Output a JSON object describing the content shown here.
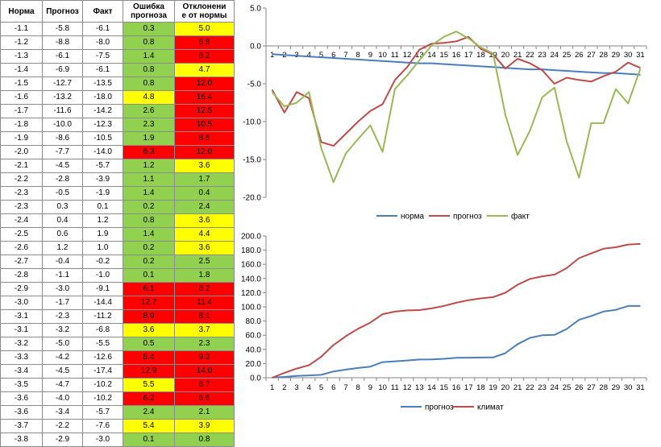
{
  "table": {
    "headers": [
      "Норма",
      "Прогноз",
      "Факт",
      "Ошибка прогноза",
      "Отклонение от нормы"
    ],
    "header_lines": [
      [
        "Норма"
      ],
      [
        "Прогноз"
      ],
      [
        "Факт"
      ],
      [
        "Ошибка",
        "прогноза"
      ],
      [
        "Отклонени",
        "е от нормы"
      ]
    ],
    "colors": {
      "green": "#92d050",
      "yellow": "#ffff00",
      "red": "#ff0000"
    },
    "rows": [
      {
        "norm": "-1.1",
        "forecast": "-5.8",
        "fact": "-6.1",
        "error": "0.3",
        "e_color": "green",
        "dev": "5.0",
        "d_color": "yellow"
      },
      {
        "norm": "-1.2",
        "forecast": "-8.8",
        "fact": "-8.0",
        "error": "0.8",
        "e_color": "green",
        "dev": "6.8",
        "d_color": "red"
      },
      {
        "norm": "-1.3",
        "forecast": "-6.1",
        "fact": "-7.5",
        "error": "1.4",
        "e_color": "green",
        "dev": "6.2",
        "d_color": "red"
      },
      {
        "norm": "-1.4",
        "forecast": "-6.9",
        "fact": "-6.1",
        "error": "0.8",
        "e_color": "green",
        "dev": "4.7",
        "d_color": "yellow"
      },
      {
        "norm": "-1.5",
        "forecast": "-12.7",
        "fact": "-13.5",
        "error": "0.8",
        "e_color": "green",
        "dev": "12.0",
        "d_color": "red"
      },
      {
        "norm": "-1.6",
        "forecast": "-13.2",
        "fact": "-18.0",
        "error": "4.8",
        "e_color": "yellow",
        "dev": "16.4",
        "d_color": "red"
      },
      {
        "norm": "-1.7",
        "forecast": "-11.6",
        "fact": "-14.2",
        "error": "2.6",
        "e_color": "green",
        "dev": "12.5",
        "d_color": "red"
      },
      {
        "norm": "-1.8",
        "forecast": "-10.0",
        "fact": "-12.3",
        "error": "2.3",
        "e_color": "green",
        "dev": "10.5",
        "d_color": "red"
      },
      {
        "norm": "-1.9",
        "forecast": "-8.6",
        "fact": "-10.5",
        "error": "1.9",
        "e_color": "green",
        "dev": "8.6",
        "d_color": "red"
      },
      {
        "norm": "-2.0",
        "forecast": "-7.7",
        "fact": "-14.0",
        "error": "6.3",
        "e_color": "red",
        "dev": "12.0",
        "d_color": "red"
      },
      {
        "norm": "-2.1",
        "forecast": "-4.5",
        "fact": "-5.7",
        "error": "1.2",
        "e_color": "green",
        "dev": "3.6",
        "d_color": "yellow"
      },
      {
        "norm": "-2.2",
        "forecast": "-2.8",
        "fact": "-3.9",
        "error": "1.1",
        "e_color": "green",
        "dev": "1.7",
        "d_color": "green"
      },
      {
        "norm": "-2.3",
        "forecast": "-0.5",
        "fact": "-1.9",
        "error": "1.4",
        "e_color": "green",
        "dev": "0.4",
        "d_color": "green"
      },
      {
        "norm": "-2.3",
        "forecast": "0.3",
        "fact": "0.1",
        "error": "0.2",
        "e_color": "green",
        "dev": "2.4",
        "d_color": "green"
      },
      {
        "norm": "-2.4",
        "forecast": "0.4",
        "fact": "1.2",
        "error": "0.8",
        "e_color": "green",
        "dev": "3.6",
        "d_color": "yellow"
      },
      {
        "norm": "-2.5",
        "forecast": "0.6",
        "fact": "1.9",
        "error": "1.4",
        "e_color": "green",
        "dev": "4.4",
        "d_color": "yellow"
      },
      {
        "norm": "-2.6",
        "forecast": "1.2",
        "fact": "1.0",
        "error": "0.2",
        "e_color": "green",
        "dev": "3.6",
        "d_color": "yellow"
      },
      {
        "norm": "-2.7",
        "forecast": "-0.4",
        "fact": "-0.2",
        "error": "0.2",
        "e_color": "green",
        "dev": "2.5",
        "d_color": "green"
      },
      {
        "norm": "-2.8",
        "forecast": "-1.1",
        "fact": "-1.0",
        "error": "0.1",
        "e_color": "green",
        "dev": "1.8",
        "d_color": "green"
      },
      {
        "norm": "-2.9",
        "forecast": "-3.0",
        "fact": "-9.1",
        "error": "6.1",
        "e_color": "red",
        "dev": "6.2",
        "d_color": "red"
      },
      {
        "norm": "-3.0",
        "forecast": "-1.7",
        "fact": "-14.4",
        "error": "12.7",
        "e_color": "red",
        "dev": "11.4",
        "d_color": "red"
      },
      {
        "norm": "-3.1",
        "forecast": "-2.3",
        "fact": "-11.2",
        "error": "8.9",
        "e_color": "red",
        "dev": "8.1",
        "d_color": "red"
      },
      {
        "norm": "-3.1",
        "forecast": "-3.2",
        "fact": "-6.8",
        "error": "3.6",
        "e_color": "yellow",
        "dev": "3.7",
        "d_color": "yellow"
      },
      {
        "norm": "-3.2",
        "forecast": "-5.0",
        "fact": "-5.5",
        "error": "0.5",
        "e_color": "green",
        "dev": "2.3",
        "d_color": "green"
      },
      {
        "norm": "-3.3",
        "forecast": "-4.2",
        "fact": "-12.6",
        "error": "8.4",
        "e_color": "red",
        "dev": "9.3",
        "d_color": "red"
      },
      {
        "norm": "-3.4",
        "forecast": "-4.5",
        "fact": "-17.4",
        "error": "12.9",
        "e_color": "red",
        "dev": "14.0",
        "d_color": "red"
      },
      {
        "norm": "-3.5",
        "forecast": "-4.7",
        "fact": "-10.2",
        "error": "5.5",
        "e_color": "yellow",
        "dev": "6.7",
        "d_color": "red"
      },
      {
        "norm": "-3.6",
        "forecast": "-4.0",
        "fact": "-10.2",
        "error": "6.2",
        "e_color": "red",
        "dev": "6.6",
        "d_color": "red"
      },
      {
        "norm": "-3.6",
        "forecast": "-3.4",
        "fact": "-5.7",
        "error": "2.4",
        "e_color": "green",
        "dev": "2.1",
        "d_color": "green"
      },
      {
        "norm": "-3.7",
        "forecast": "-2.2",
        "fact": "-7.6",
        "error": "5.4",
        "e_color": "yellow",
        "dev": "3.9",
        "d_color": "yellow"
      },
      {
        "norm": "-3.8",
        "forecast": "-2.9",
        "fact": "-3.0",
        "error": "0.1",
        "e_color": "green",
        "dev": "0.8",
        "d_color": "green"
      }
    ]
  },
  "chart_data": [
    {
      "type": "line",
      "title": "",
      "x": [
        1,
        2,
        3,
        4,
        5,
        6,
        7,
        8,
        9,
        10,
        11,
        12,
        13,
        14,
        15,
        16,
        17,
        18,
        19,
        20,
        21,
        22,
        23,
        24,
        25,
        26,
        27,
        28,
        29,
        30,
        31
      ],
      "ylim": [
        -20,
        5
      ],
      "yticks": [
        "5.0",
        "0.0",
        "-5.0",
        "-10.0",
        "-15.0",
        "-20.0"
      ],
      "grid": false,
      "legend": "bottom",
      "series": [
        {
          "name": "норма",
          "color": "#4a7ebb",
          "values": [
            -1.1,
            -1.2,
            -1.3,
            -1.4,
            -1.5,
            -1.6,
            -1.7,
            -1.8,
            -1.9,
            -2.0,
            -2.1,
            -2.2,
            -2.3,
            -2.3,
            -2.4,
            -2.5,
            -2.6,
            -2.7,
            -2.8,
            -2.9,
            -3.0,
            -3.1,
            -3.1,
            -3.2,
            -3.3,
            -3.4,
            -3.5,
            -3.6,
            -3.6,
            -3.7,
            -3.8
          ]
        },
        {
          "name": "прогноз",
          "color": "#be4b48",
          "values": [
            -5.8,
            -8.8,
            -6.1,
            -6.9,
            -12.7,
            -13.2,
            -11.6,
            -10.0,
            -8.6,
            -7.7,
            -4.5,
            -2.8,
            -0.5,
            0.3,
            0.4,
            0.6,
            1.2,
            -0.4,
            -1.1,
            -3.0,
            -1.7,
            -2.3,
            -3.2,
            -5.0,
            -4.2,
            -4.5,
            -4.7,
            -4.0,
            -3.4,
            -2.2,
            -2.9
          ]
        },
        {
          "name": "факт",
          "color": "#98b954",
          "values": [
            -6.1,
            -8.0,
            -7.5,
            -6.1,
            -13.5,
            -18.0,
            -14.2,
            -12.3,
            -10.5,
            -14.0,
            -5.7,
            -3.9,
            -1.9,
            0.1,
            1.2,
            1.9,
            1.0,
            -0.2,
            -1.0,
            -9.1,
            -14.4,
            -11.2,
            -6.8,
            -5.5,
            -12.6,
            -17.4,
            -10.2,
            -10.2,
            -5.7,
            -7.6,
            -3.0
          ]
        }
      ]
    },
    {
      "type": "line",
      "title": "",
      "x": [
        1,
        2,
        3,
        4,
        5,
        6,
        7,
        8,
        9,
        10,
        11,
        12,
        13,
        14,
        15,
        16,
        17,
        18,
        19,
        20,
        21,
        22,
        23,
        24,
        25,
        26,
        27,
        28,
        29,
        30,
        31
      ],
      "ylim": [
        0,
        200
      ],
      "yticks": [
        "200.0",
        "180.0",
        "160.0",
        "140.0",
        "120.0",
        "100.0",
        "80.0",
        "60.0",
        "40.0",
        "20.0",
        "0.0"
      ],
      "grid": false,
      "legend": "bottom",
      "series": [
        {
          "name": "прогноз",
          "color": "#4a7ebb",
          "values": [
            0.3,
            1.1,
            2.5,
            3.3,
            4.1,
            8.9,
            11.5,
            13.8,
            15.7,
            22.0,
            23.2,
            24.3,
            25.7,
            25.9,
            26.7,
            28.1,
            28.3,
            28.5,
            28.6,
            34.7,
            47.4,
            56.3,
            59.9,
            60.4,
            68.8,
            81.7,
            87.2,
            93.4,
            95.8,
            101.2,
            101.3
          ]
        },
        {
          "name": "климат",
          "color": "#be4b48",
          "values": [
            0.0,
            6.8,
            13.0,
            17.7,
            29.7,
            46.1,
            58.6,
            69.1,
            77.7,
            89.7,
            93.3,
            95.0,
            95.4,
            97.8,
            101.4,
            105.8,
            109.4,
            111.9,
            113.7,
            119.9,
            131.3,
            139.4,
            143.1,
            145.4,
            154.7,
            168.7,
            175.4,
            182.0,
            184.1,
            188.0,
            188.8
          ]
        }
      ]
    }
  ]
}
